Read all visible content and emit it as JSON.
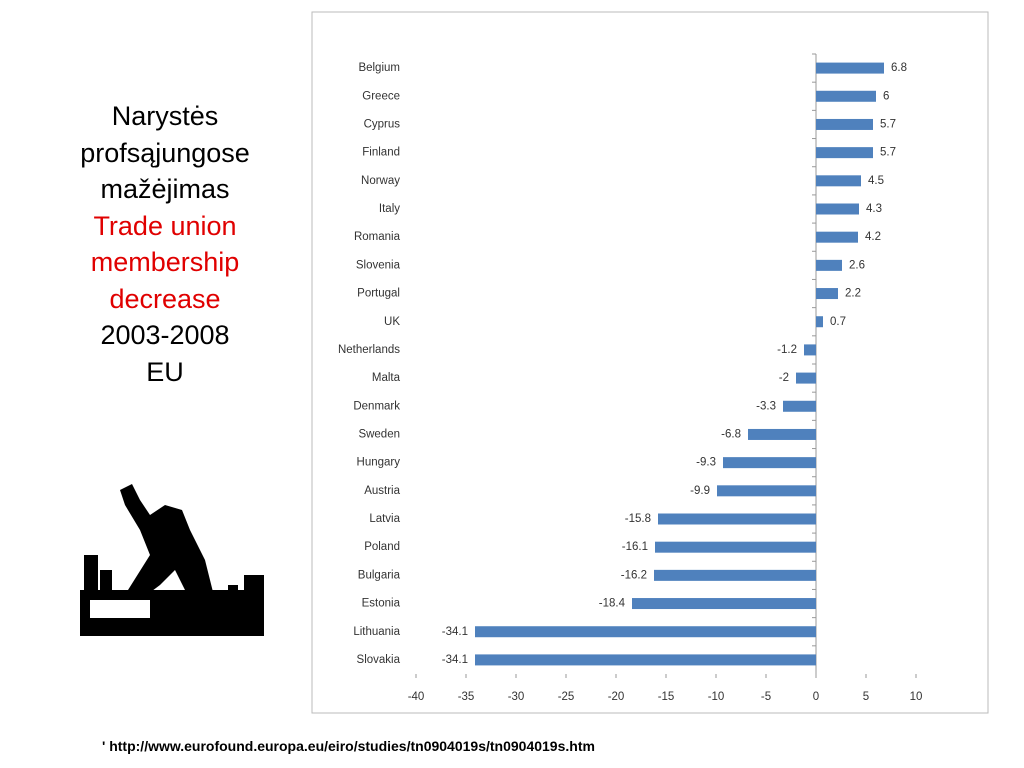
{
  "slide": {
    "title_lt": [
      "Narystės",
      "profsąjungose",
      "mažėjimas"
    ],
    "title_en": [
      "Trade union",
      "membership",
      "decrease"
    ],
    "period": "2003-2008",
    "region": "EU",
    "footnote": "' http://www.eurofound.europa.eu/eiro/studies/tn0904019s/tn0904019s.htm"
  },
  "chart_data": {
    "type": "hbar",
    "categories": [
      "Belgium",
      "Greece",
      "Cyprus",
      "Finland",
      "Norway",
      "Italy",
      "Romania",
      "Slovenia",
      "Portugal",
      "UK",
      "Netherlands",
      "Malta",
      "Denmark",
      "Sweden",
      "Hungary",
      "Austria",
      "Latvia",
      "Poland",
      "Bulgaria",
      "Estonia",
      "Lithuania",
      "Slovakia"
    ],
    "values": [
      6.8,
      6,
      5.7,
      5.7,
      4.5,
      4.3,
      4.2,
      2.6,
      2.2,
      0.7,
      -1.2,
      -2,
      -3.3,
      -6.8,
      -9.3,
      -9.9,
      -15.8,
      -16.1,
      -16.2,
      -18.4,
      -34.1,
      -34.1
    ],
    "color": "#4f81bd",
    "xlim": [
      -40,
      10
    ],
    "xticks": [
      -40,
      -35,
      -30,
      -25,
      -20,
      -15,
      -10,
      -5,
      0,
      5,
      10
    ]
  }
}
